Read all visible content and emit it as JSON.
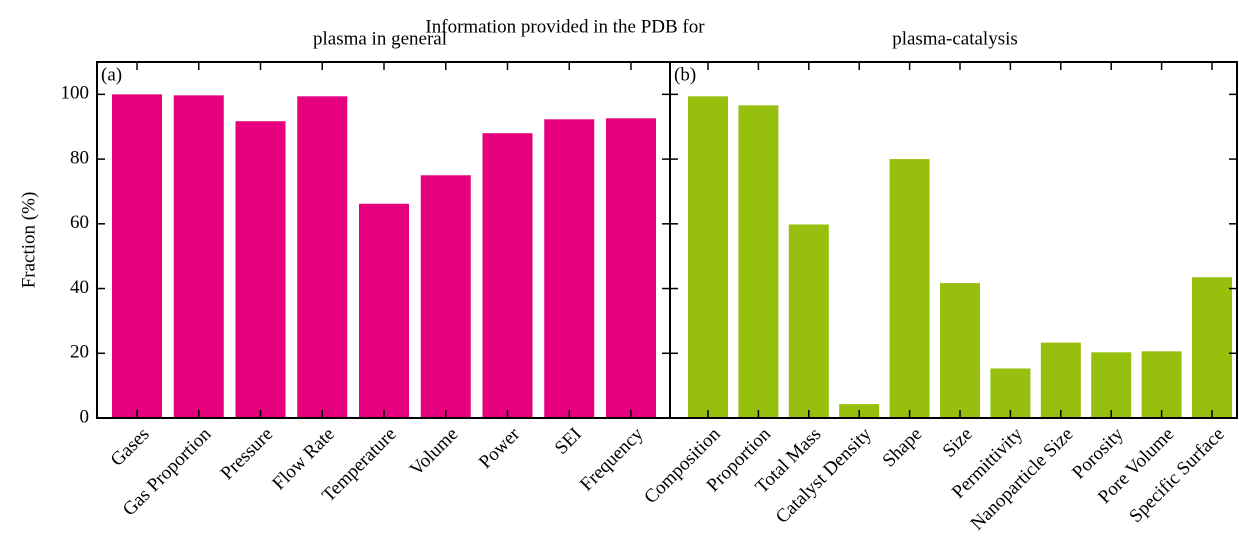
{
  "title": "Information provided in the PDB for",
  "chart_data": [
    {
      "type": "bar",
      "title": "plasma in general",
      "panel_label": "(a)",
      "ylabel": "Fraction (%)",
      "categories": [
        "Gases",
        "Gas Proportion",
        "Pressure",
        "Flow Rate",
        "Temperature",
        "Volume",
        "Power",
        "SEI",
        "Frequency"
      ],
      "values": [
        100,
        99.7,
        91.7,
        99.4,
        66.2,
        75,
        88,
        92.3,
        92.6
      ],
      "color": "#e6007e",
      "ylim": [
        0,
        110
      ],
      "yticks": [
        0,
        20,
        40,
        60,
        80,
        100
      ]
    },
    {
      "type": "bar",
      "title": "plasma-catalysis",
      "panel_label": "(b)",
      "categories": [
        "Composition",
        "Proportion",
        "Total Mass",
        "Catalyst Density",
        "Shape",
        "Size",
        "Permittivity",
        "Nanoparticle Size",
        "Porosity",
        "Pore Volume",
        "Specific Surface"
      ],
      "values": [
        99.4,
        96.6,
        59.8,
        4.3,
        80,
        41.7,
        15.3,
        23.3,
        20.3,
        20.6,
        43.5
      ],
      "color": "#97bf0d",
      "ylim": [
        0,
        110
      ],
      "yticks": [
        0,
        20,
        40,
        60,
        80,
        100
      ]
    }
  ]
}
